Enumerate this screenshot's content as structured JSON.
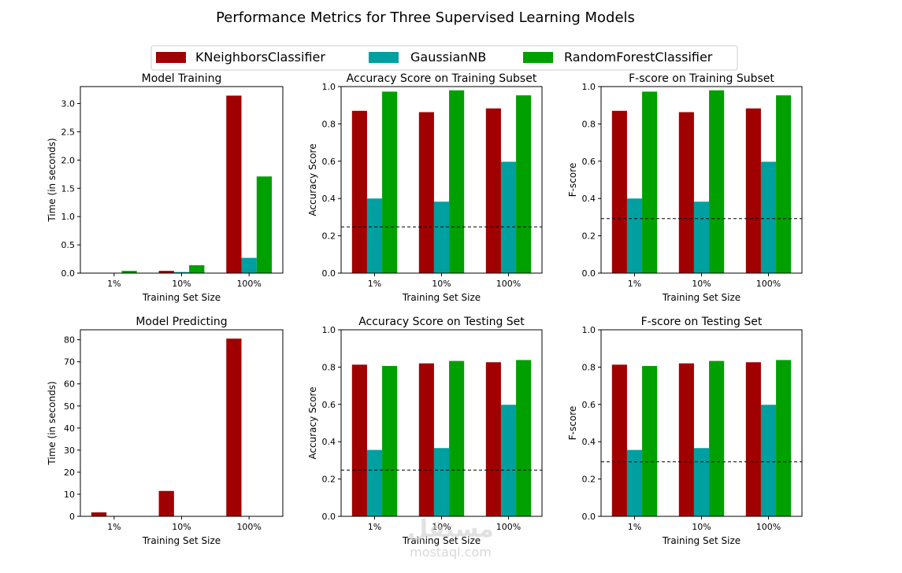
{
  "figure": {
    "title": "Performance Metrics for Three Supervised Learning Models",
    "watermark_arabic": "مستقل",
    "watermark_latin": "mostaql.com"
  },
  "legend": {
    "placement": "top-center",
    "entries": [
      {
        "label": "KNeighborsClassifier",
        "color": "#a00000"
      },
      {
        "label": "GaussianNB",
        "color": "#00a0a0"
      },
      {
        "label": "RandomForestClassifier",
        "color": "#00a000"
      }
    ]
  },
  "chart_data": [
    {
      "type": "bar",
      "title": "Model Training",
      "xlabel": "Training Set Size",
      "ylabel": "Time (in seconds)",
      "categories": [
        "1%",
        "10%",
        "100%"
      ],
      "ylim": [
        0,
        3.3
      ],
      "yticks": [
        0,
        0.5,
        1,
        1.5,
        2,
        2.5,
        3
      ],
      "ytick_labels": [
        "0.0",
        "0.5",
        "1.0",
        "1.5",
        "2.0",
        "2.5",
        "3.0"
      ],
      "series": [
        {
          "name": "KNeighborsClassifier",
          "values": [
            0.005,
            0.04,
            3.14
          ]
        },
        {
          "name": "GaussianNB",
          "values": [
            0.004,
            0.02,
            0.27
          ]
        },
        {
          "name": "RandomForestClassifier",
          "values": [
            0.04,
            0.14,
            1.71
          ]
        }
      ]
    },
    {
      "type": "bar",
      "title": "Accuracy Score on Training Subset",
      "xlabel": "Training Set Size",
      "ylabel": "Accuracy Score",
      "categories": [
        "1%",
        "10%",
        "100%"
      ],
      "ylim": [
        0,
        1
      ],
      "yticks": [
        0,
        0.2,
        0.4,
        0.6,
        0.8,
        1
      ],
      "ytick_labels": [
        "0.0",
        "0.2",
        "0.4",
        "0.6",
        "0.8",
        "1.0"
      ],
      "baseline": 0.248,
      "series": [
        {
          "name": "KNeighborsClassifier",
          "values": [
            0.87,
            0.863,
            0.883
          ]
        },
        {
          "name": "GaussianNB",
          "values": [
            0.4,
            0.383,
            0.597
          ]
        },
        {
          "name": "RandomForestClassifier",
          "values": [
            0.973,
            0.98,
            0.953
          ]
        }
      ]
    },
    {
      "type": "bar",
      "title": "F-score on Training Subset",
      "xlabel": "Training Set Size",
      "ylabel": "F-score",
      "categories": [
        "1%",
        "10%",
        "100%"
      ],
      "ylim": [
        0,
        1
      ],
      "yticks": [
        0,
        0.2,
        0.4,
        0.6,
        0.8,
        1
      ],
      "ytick_labels": [
        "0.0",
        "0.2",
        "0.4",
        "0.6",
        "0.8",
        "1.0"
      ],
      "baseline": 0.292,
      "series": [
        {
          "name": "KNeighborsClassifier",
          "values": [
            0.87,
            0.863,
            0.883
          ]
        },
        {
          "name": "GaussianNB",
          "values": [
            0.4,
            0.383,
            0.597
          ]
        },
        {
          "name": "RandomForestClassifier",
          "values": [
            0.973,
            0.98,
            0.953
          ]
        }
      ]
    },
    {
      "type": "bar",
      "title": "Model Predicting",
      "xlabel": "Training Set Size",
      "ylabel": "Time (in seconds)",
      "categories": [
        "1%",
        "10%",
        "100%"
      ],
      "ylim": [
        0,
        84.5
      ],
      "yticks": [
        0,
        10,
        20,
        30,
        40,
        50,
        60,
        70,
        80
      ],
      "ytick_labels": [
        "0",
        "10",
        "20",
        "30",
        "40",
        "50",
        "60",
        "70",
        "80"
      ],
      "series": [
        {
          "name": "KNeighborsClassifier",
          "values": [
            1.8,
            11.5,
            80.5
          ]
        },
        {
          "name": "GaussianNB",
          "values": [
            0.01,
            0.02,
            0.05
          ]
        },
        {
          "name": "RandomForestClassifier",
          "values": [
            0.02,
            0.05,
            0.1
          ]
        }
      ]
    },
    {
      "type": "bar",
      "title": "Accuracy Score on Testing Set",
      "xlabel": "Training Set Size",
      "ylabel": "Accuracy Score",
      "categories": [
        "1%",
        "10%",
        "100%"
      ],
      "ylim": [
        0,
        1
      ],
      "yticks": [
        0,
        0.2,
        0.4,
        0.6,
        0.8,
        1
      ],
      "ytick_labels": [
        "0.0",
        "0.2",
        "0.4",
        "0.6",
        "0.8",
        "1.0"
      ],
      "baseline": 0.248,
      "series": [
        {
          "name": "KNeighborsClassifier",
          "values": [
            0.813,
            0.82,
            0.826
          ]
        },
        {
          "name": "GaussianNB",
          "values": [
            0.356,
            0.366,
            0.598
          ]
        },
        {
          "name": "RandomForestClassifier",
          "values": [
            0.806,
            0.833,
            0.838
          ]
        }
      ]
    },
    {
      "type": "bar",
      "title": "F-score on Testing Set",
      "xlabel": "Training Set Size",
      "ylabel": "F-score",
      "categories": [
        "1%",
        "10%",
        "100%"
      ],
      "ylim": [
        0,
        1
      ],
      "yticks": [
        0,
        0.2,
        0.4,
        0.6,
        0.8,
        1
      ],
      "ytick_labels": [
        "0.0",
        "0.2",
        "0.4",
        "0.6",
        "0.8",
        "1.0"
      ],
      "baseline": 0.292,
      "series": [
        {
          "name": "KNeighborsClassifier",
          "values": [
            0.813,
            0.82,
            0.826
          ]
        },
        {
          "name": "GaussianNB",
          "values": [
            0.356,
            0.366,
            0.598
          ]
        },
        {
          "name": "RandomForestClassifier",
          "values": [
            0.806,
            0.833,
            0.838
          ]
        }
      ]
    }
  ]
}
